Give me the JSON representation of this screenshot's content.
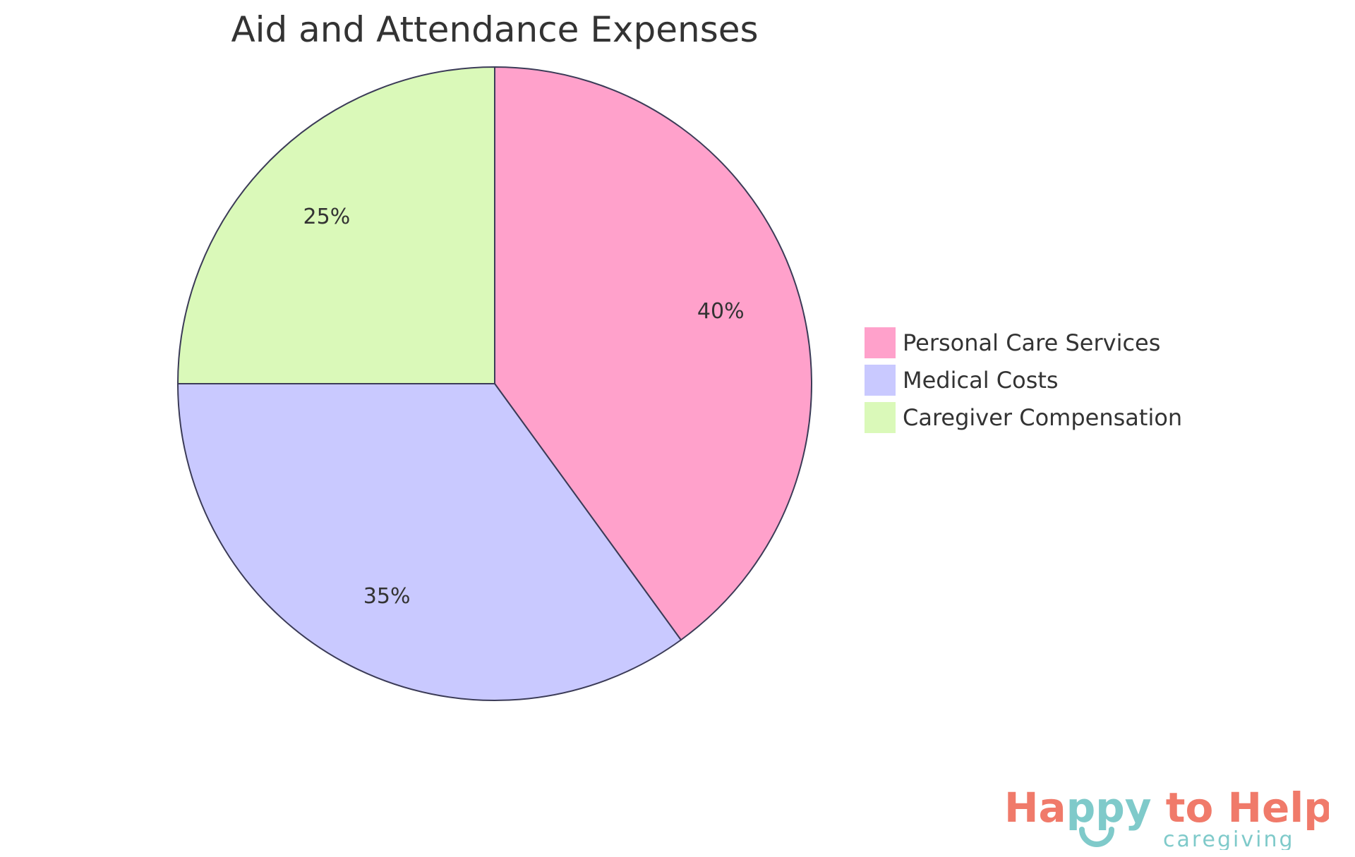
{
  "chart_data": {
    "type": "pie",
    "title": "Aid and Attendance Expenses",
    "slices": [
      {
        "label": "Personal Care Services",
        "value": 40,
        "display": "40%",
        "color": "#FFA1CB"
      },
      {
        "label": "Medical Costs",
        "value": 35,
        "display": "35%",
        "color": "#C9C9FF"
      },
      {
        "label": "Caregiver Compensation",
        "value": 25,
        "display": "25%",
        "color": "#DAF9B9"
      }
    ],
    "stroke_color": "#3B3B57",
    "start": "top",
    "direction": "clockwise",
    "legend_placement": "right"
  },
  "logo": {
    "text_main_1": "Ha",
    "text_main_2": "ppy",
    "text_main_3": " to Help",
    "text_sub": "caregiving",
    "color_primary": "#F07A6A",
    "color_secondary": "#7FCACA"
  }
}
